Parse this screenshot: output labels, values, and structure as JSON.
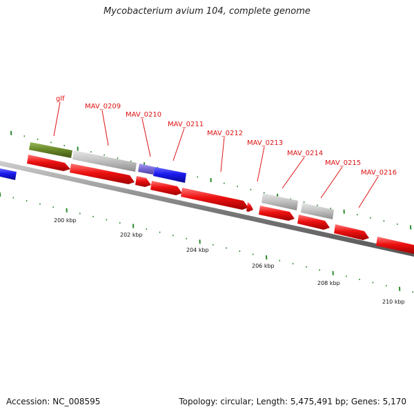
{
  "map": {
    "title": "Mycobacterium avium 104, complete genome",
    "accession": "Accession: NC_008595",
    "stats": "Topology: circular; Length: 5,475,491 bp; Genes: 5,170"
  },
  "scale_labels": [
    "200 kbp",
    "202 kbp",
    "204 kbp",
    "206 kbp",
    "208 kbp",
    "210 kbp"
  ],
  "gene_labels": [
    "glf",
    "MAV_0209",
    "MAV_0210",
    "MAV_0211",
    "MAV_0212",
    "MAV_0213",
    "MAV_0214",
    "MAV_0215",
    "MAV_0216"
  ],
  "colors": {
    "cds": "#ee1111",
    "gene_blue": "#1a1aee",
    "gene_lightblue": "#7a6cd8",
    "gene_grey": "#bdbdbd",
    "gene_green": "#6b8a2a",
    "backbone": "#7a7a7a",
    "tick": "#2a8a2a",
    "label": "#dd1111"
  }
}
